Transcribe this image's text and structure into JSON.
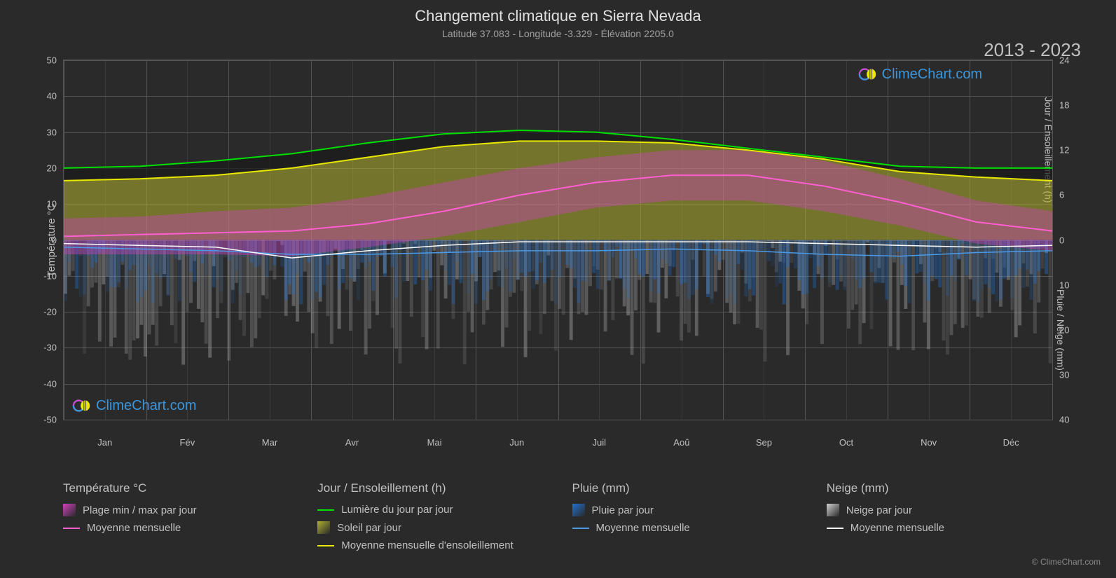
{
  "title": "Changement climatique en Sierra Nevada",
  "subtitle": "Latitude 37.083 - Longitude -3.329 - Élévation 2205.0",
  "year_range": "2013 - 2023",
  "watermark_text": "ClimeChart.com",
  "copyright": "© ClimeChart.com",
  "axes": {
    "left_label": "Température °C",
    "right_label_top": "Jour / Ensoleillement (h)",
    "right_label_bottom": "Pluie / Neige (mm)",
    "left_ticks": [
      50,
      40,
      30,
      20,
      10,
      0,
      -10,
      -20,
      -30,
      -40,
      -50
    ],
    "right_ticks_top": [
      24,
      18,
      12,
      6,
      0
    ],
    "right_ticks_bottom": [
      10,
      20,
      30,
      40
    ],
    "months": [
      "Jan",
      "Fév",
      "Mar",
      "Avr",
      "Mai",
      "Jun",
      "Juil",
      "Aoû",
      "Sep",
      "Oct",
      "Nov",
      "Déc"
    ]
  },
  "chart": {
    "ylim_left": [
      -50,
      50
    ],
    "background": "#2a2a2a",
    "grid_color": "#555555",
    "colors": {
      "daylight_line": "#00e000",
      "sun_avg_line": "#e8e800",
      "sun_fill": "#b0b030",
      "temp_range_fill": "#d040c0",
      "temp_avg_line": "#ff5fd0",
      "rain_line": "#4a9ae8",
      "rain_bars": "#2070d0",
      "snow_line": "#ffffff",
      "snow_bars": "#b0b0b0"
    },
    "daylight": [
      20,
      20.5,
      22,
      24,
      27,
      29.5,
      30.5,
      30,
      28,
      25.5,
      23,
      20.5,
      20,
      20
    ],
    "sun_avg": [
      16.5,
      17,
      18,
      20,
      23,
      26,
      27.5,
      27.5,
      27,
      25,
      22.5,
      19,
      17.5,
      16.5
    ],
    "temp_avg": [
      1,
      1.5,
      2,
      2.5,
      4.5,
      8,
      12.5,
      16,
      18,
      18,
      15,
      10.5,
      5,
      2.5
    ],
    "temp_max": [
      6,
      6.5,
      8,
      9,
      12,
      16,
      20,
      23,
      25,
      25,
      22,
      17,
      11,
      8
    ],
    "temp_min": [
      -4,
      -4,
      -4,
      -4.5,
      -2,
      1,
      5,
      9,
      11,
      11,
      8,
      4,
      -1,
      -3
    ],
    "rain_avg": [
      -2,
      -2.5,
      -3,
      -4,
      -4,
      -3.5,
      -3,
      -3,
      -2.5,
      -3,
      -4,
      -4.5,
      -3.5,
      -3
    ],
    "snow_avg": [
      -1,
      -1.5,
      -2,
      -5,
      -3,
      -1.5,
      -0.5,
      -0.5,
      -0.5,
      -0.5,
      -1,
      -1.5,
      -2,
      -1.5
    ],
    "precip_bars_depth": 35
  },
  "legend": {
    "cols": [
      {
        "header": "Température °C",
        "items": [
          {
            "type": "swatch",
            "color": "#d040c0",
            "gradient": true,
            "label": "Plage min / max par jour"
          },
          {
            "type": "line",
            "color": "#ff5fd0",
            "label": "Moyenne mensuelle"
          }
        ]
      },
      {
        "header": "Jour / Ensoleillement (h)",
        "items": [
          {
            "type": "line",
            "color": "#00e000",
            "label": "Lumière du jour par jour"
          },
          {
            "type": "swatch",
            "color": "#b0b030",
            "gradient": true,
            "label": "Soleil par jour"
          },
          {
            "type": "line",
            "color": "#e8e800",
            "label": "Moyenne mensuelle d'ensoleillement"
          }
        ]
      },
      {
        "header": "Pluie (mm)",
        "items": [
          {
            "type": "swatch",
            "color": "#2070d0",
            "gradient": true,
            "label": "Pluie par jour"
          },
          {
            "type": "line",
            "color": "#4a9ae8",
            "label": "Moyenne mensuelle"
          }
        ]
      },
      {
        "header": "Neige (mm)",
        "items": [
          {
            "type": "swatch",
            "color": "#d0d0d0",
            "gradient": true,
            "label": "Neige par jour"
          },
          {
            "type": "line",
            "color": "#ffffff",
            "label": "Moyenne mensuelle"
          }
        ]
      }
    ]
  }
}
